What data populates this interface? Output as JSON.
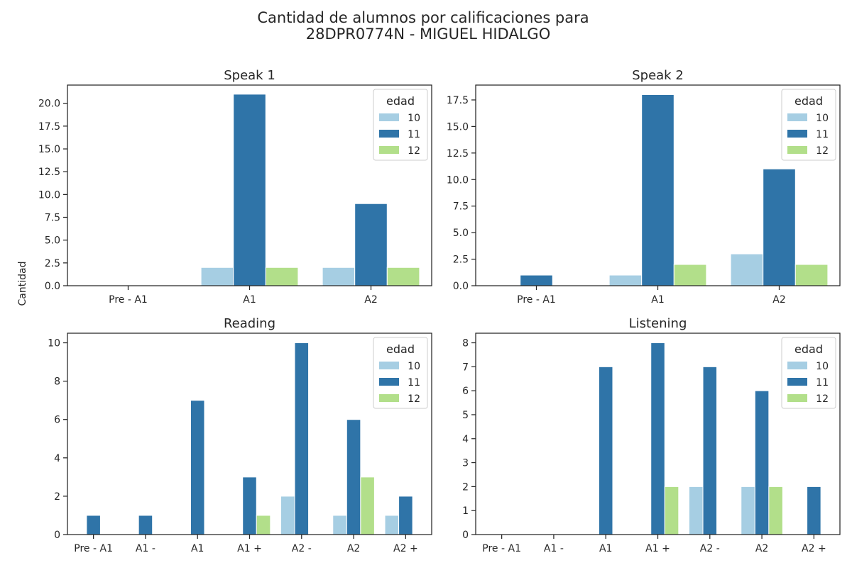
{
  "figure": {
    "title_line1": "Cantidad de alumnos por calificaciones para",
    "title_line2": "28DPR0774N - MIGUEL HIDALGO",
    "ylabel": "Cantidad"
  },
  "colors": {
    "10": "#a6cee3",
    "11": "#2f74a8",
    "12": "#b2df8a"
  },
  "chart_data": [
    {
      "type": "bar",
      "title": "Speak 1",
      "categories": [
        "Pre - A1",
        "A1",
        "A2"
      ],
      "legend_title": "edad",
      "legend_position": "top-right",
      "ylim": [
        0,
        22
      ],
      "yticks": [
        0.0,
        2.5,
        5.0,
        7.5,
        10.0,
        12.5,
        15.0,
        17.5,
        20.0
      ],
      "yticklabels": [
        "0.0",
        "2.5",
        "5.0",
        "7.5",
        "10.0",
        "12.5",
        "15.0",
        "17.5",
        "20.0"
      ],
      "series": [
        {
          "name": "10",
          "values": [
            0,
            2,
            2
          ]
        },
        {
          "name": "11",
          "values": [
            0,
            21,
            9
          ]
        },
        {
          "name": "12",
          "values": [
            0,
            2,
            2
          ]
        }
      ]
    },
    {
      "type": "bar",
      "title": "Speak 2",
      "categories": [
        "Pre - A1",
        "A1",
        "A2"
      ],
      "legend_title": "edad",
      "legend_position": "top-right",
      "ylim": [
        0,
        18.9
      ],
      "yticks": [
        0.0,
        2.5,
        5.0,
        7.5,
        10.0,
        12.5,
        15.0,
        17.5
      ],
      "yticklabels": [
        "0.0",
        "2.5",
        "5.0",
        "7.5",
        "10.0",
        "12.5",
        "15.0",
        "17.5"
      ],
      "series": [
        {
          "name": "10",
          "values": [
            0,
            1,
            3
          ]
        },
        {
          "name": "11",
          "values": [
            1,
            18,
            11
          ]
        },
        {
          "name": "12",
          "values": [
            0,
            2,
            2
          ]
        }
      ]
    },
    {
      "type": "bar",
      "title": "Reading",
      "categories": [
        "Pre - A1",
        "A1 -",
        "A1",
        "A1 +",
        "A2 -",
        "A2",
        "A2 +"
      ],
      "legend_title": "edad",
      "legend_position": "top-right",
      "ylim": [
        0,
        10.5
      ],
      "yticks": [
        0,
        2,
        4,
        6,
        8,
        10
      ],
      "yticklabels": [
        "0",
        "2",
        "4",
        "6",
        "8",
        "10"
      ],
      "series": [
        {
          "name": "10",
          "values": [
            0,
            0,
            0,
            0,
            2,
            1,
            1
          ]
        },
        {
          "name": "11",
          "values": [
            1,
            1,
            7,
            3,
            10,
            6,
            2
          ]
        },
        {
          "name": "12",
          "values": [
            0,
            0,
            0,
            1,
            0,
            3,
            0
          ]
        }
      ]
    },
    {
      "type": "bar",
      "title": "Listening",
      "categories": [
        "Pre - A1",
        "A1 -",
        "A1",
        "A1 +",
        "A2 -",
        "A2",
        "A2 +"
      ],
      "legend_title": "edad",
      "legend_position": "top-right",
      "ylim": [
        0,
        8.4
      ],
      "yticks": [
        0,
        1,
        2,
        3,
        4,
        5,
        6,
        7,
        8
      ],
      "yticklabels": [
        "0",
        "1",
        "2",
        "3",
        "4",
        "5",
        "6",
        "7",
        "8"
      ],
      "series": [
        {
          "name": "10",
          "values": [
            0,
            0,
            0,
            0,
            2,
            2,
            0
          ]
        },
        {
          "name": "11",
          "values": [
            0,
            0,
            7,
            8,
            7,
            6,
            2
          ]
        },
        {
          "name": "12",
          "values": [
            0,
            0,
            0,
            2,
            0,
            2,
            0
          ]
        }
      ]
    }
  ]
}
